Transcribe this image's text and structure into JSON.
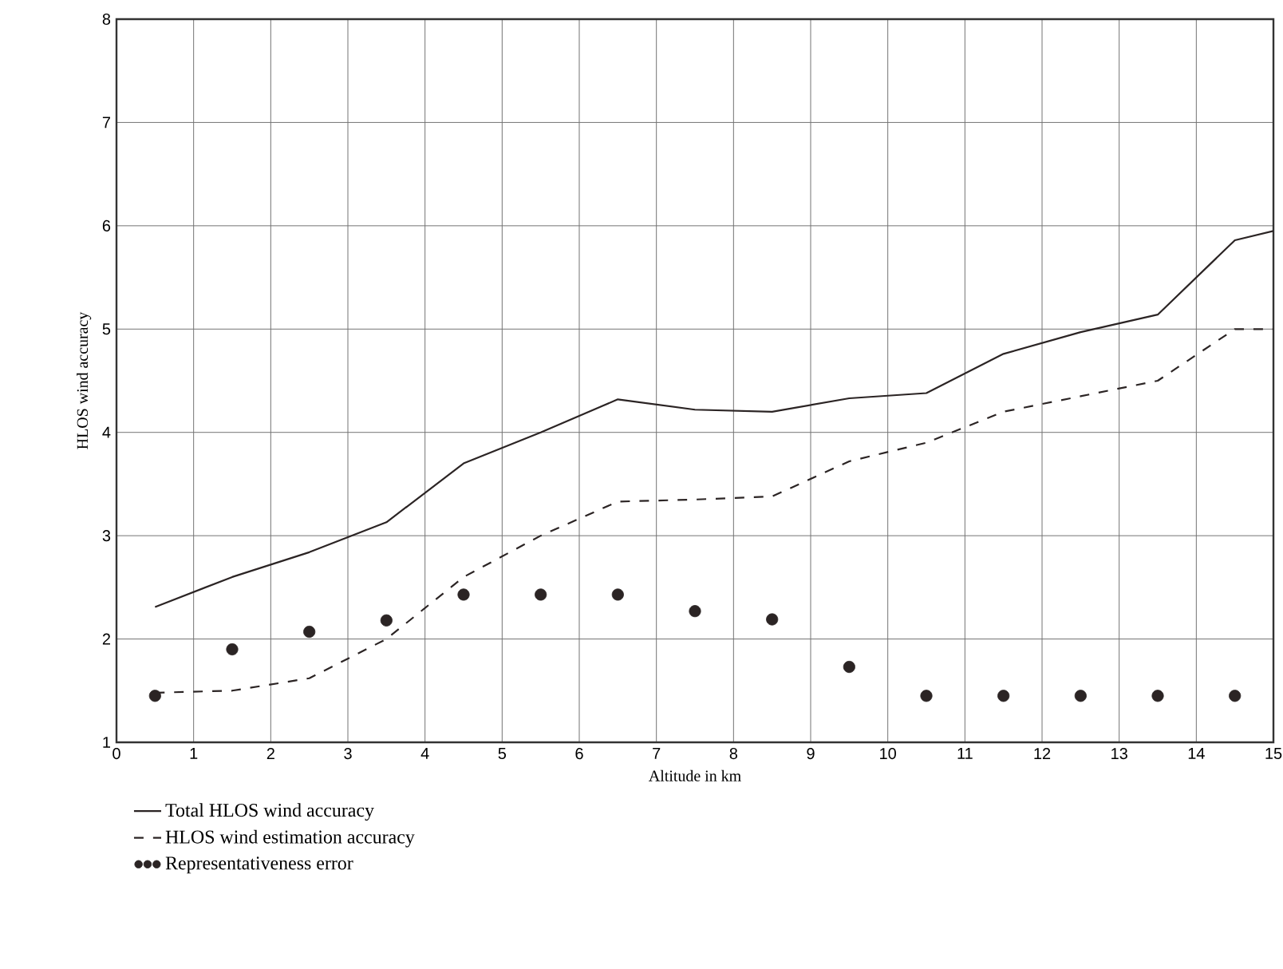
{
  "chart_data": {
    "type": "line",
    "xlabel": "Altitude in km",
    "ylabel": "HLOS wind accuracy",
    "xlim": [
      0,
      15
    ],
    "ylim": [
      1,
      8
    ],
    "xticks": [
      0,
      1,
      2,
      3,
      4,
      5,
      6,
      7,
      8,
      9,
      10,
      11,
      12,
      13,
      14,
      15
    ],
    "yticks": [
      1,
      2,
      3,
      4,
      5,
      6,
      7,
      8
    ],
    "grid": true,
    "legend": "bottom",
    "series": [
      {
        "name": "Total HLOS wind accuracy",
        "line_style": "solid",
        "color": "#2b2424",
        "x": [
          0.5,
          1.5,
          2.5,
          3.5,
          4.5,
          5.5,
          6.5,
          7.5,
          8.5,
          9.5,
          10.5,
          11.5,
          12.5,
          13.5,
          14.5,
          15
        ],
        "values": [
          2.31,
          2.6,
          2.84,
          3.13,
          3.7,
          4.0,
          4.32,
          4.22,
          4.2,
          4.33,
          4.38,
          4.76,
          4.97,
          5.14,
          5.86,
          5.95
        ]
      },
      {
        "name": "HLOS wind estimation accuracy",
        "line_style": "dashed",
        "color": "#2b2424",
        "x": [
          0.5,
          1.5,
          2.5,
          3.5,
          4.5,
          5.5,
          6.5,
          7.5,
          8.5,
          9.5,
          10.5,
          11.5,
          12.5,
          13.5,
          14.5,
          15
        ],
        "values": [
          1.48,
          1.5,
          1.62,
          2.0,
          2.6,
          3.0,
          3.33,
          3.35,
          3.38,
          3.72,
          3.9,
          4.2,
          4.35,
          4.5,
          5.0,
          5.0
        ]
      },
      {
        "name": "Representativeness error",
        "type": "scatter",
        "marker": "circle",
        "color": "#2b2424",
        "x": [
          0.5,
          1.5,
          2.5,
          3.5,
          4.5,
          5.5,
          6.5,
          7.5,
          8.5,
          9.5,
          10.5,
          11.5,
          12.5,
          13.5,
          14.5
        ],
        "values": [
          1.45,
          1.9,
          2.07,
          2.18,
          2.43,
          2.43,
          2.43,
          2.27,
          2.19,
          1.73,
          1.45,
          1.45,
          1.45,
          1.45,
          1.45
        ]
      }
    ]
  }
}
